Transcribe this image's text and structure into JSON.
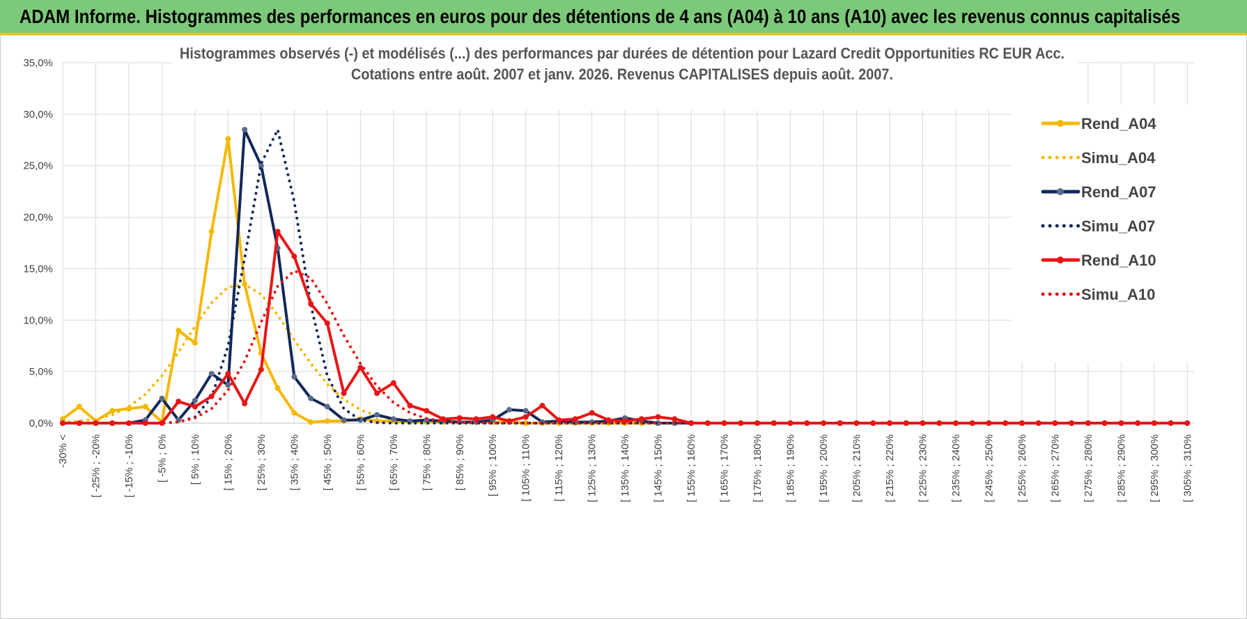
{
  "header": {
    "title": "ADAM Informe. Histogrammes des performances en euros pour des détentions de 4 ans (A04) à 10 ans (A10) avec les revenus connus capitalisés",
    "background": "#7DC97A",
    "accent": "#F2C300"
  },
  "chart_data": {
    "type": "line",
    "title_line1": "Histogrammes observés (-) et modélisés (...) des performances par durées de détention pour Lazard Credit Opportunities RC EUR Acc.",
    "title_line2": "Cotations entre août. 2007 et janv. 2026. Revenus CAPITALISES depuis août. 2007.",
    "ylim": [
      0,
      35
    ],
    "yticks": [
      "0,0%",
      "5,0%",
      "10,0%",
      "15,0%",
      "20,0%",
      "25,0%",
      "30,0%",
      "35,0%"
    ],
    "grid": true,
    "legend_position": "right",
    "x_labels": [
      "-30% <",
      "[ -25% ; -20%",
      "[ -15% ; -10%",
      "[ -5% ; 0%",
      "[ 5% ; 10%",
      "[ 15% ; 20%",
      "[ 25% ; 30%",
      "[ 35% ; 40%",
      "[ 45% ; 50%",
      "[ 55% ; 60%",
      "[ 65% ; 70%",
      "[ 75% ; 80%",
      "[ 85% ; 90%",
      "[ 95% ; 100%",
      "[ 105% ; 110%",
      "[ 115% ; 120%",
      "[ 125% ; 130%",
      "[ 135% ; 140%",
      "[ 145% ; 150%",
      "[ 155% ; 160%",
      "[ 165% ; 170%",
      "[ 175% ; 180%",
      "[ 185% ; 190%",
      "[ 195% ; 200%",
      "[ 205% ; 210%",
      "[ 215% ; 220%",
      "[ 225% ; 230%",
      "[ 235% ; 240%",
      "[ 245% ; 250%",
      "[ 255% ; 260%",
      "[ 265% ; 270%",
      "[ 275% ; 280%",
      "[ 285% ; 290%",
      "[ 295% ; 300%",
      "[ 305% ; 310%"
    ],
    "n_points": 69,
    "series": [
      {
        "name": "Rend_A04",
        "color": "#F5B800",
        "style": "solid",
        "values": [
          0.4,
          1.6,
          0.2,
          1.2,
          1.4,
          1.6,
          0.1,
          9.0,
          7.8,
          18.6,
          27.6,
          13.5,
          6.8,
          3.4,
          1.0,
          0.1,
          0.2,
          0.2,
          0.4,
          0.2,
          0.2,
          0.1,
          0.1,
          0.1,
          0.1,
          0.1,
          0.1,
          0.1,
          0,
          0,
          0,
          0,
          0,
          0,
          0,
          0,
          0,
          0,
          0,
          0,
          0,
          0,
          0,
          0,
          0,
          0,
          0,
          0,
          0,
          0,
          0,
          0,
          0,
          0,
          0,
          0,
          0,
          0,
          0,
          0,
          0,
          0,
          0,
          0,
          0,
          0,
          0,
          0,
          0
        ]
      },
      {
        "name": "Simu_A04",
        "color": "#F5B800",
        "style": "dotted",
        "values": [
          0.1,
          0.2,
          0.4,
          0.8,
          1.6,
          2.8,
          4.6,
          6.9,
          9.4,
          11.7,
          13.2,
          13.5,
          12.5,
          10.5,
          8.1,
          5.8,
          3.8,
          2.3,
          1.3,
          0.7,
          0.35,
          0.15,
          0.1,
          0.05,
          0,
          0,
          0,
          0,
          0,
          0,
          0,
          0,
          0,
          0,
          0,
          0,
          0,
          0,
          0,
          0,
          0,
          0,
          0,
          0,
          0,
          0,
          0,
          0,
          0,
          0,
          0,
          0,
          0,
          0,
          0,
          0,
          0,
          0,
          0,
          0,
          0,
          0,
          0,
          0,
          0,
          0,
          0,
          0,
          0
        ]
      },
      {
        "name": "Rend_A07",
        "color": "#12285A",
        "style": "solid",
        "values": [
          0,
          0,
          0,
          0,
          0,
          0.3,
          2.4,
          0.3,
          2.2,
          4.8,
          3.7,
          28.5,
          25.0,
          17.0,
          4.5,
          2.4,
          1.6,
          0.3,
          0.3,
          0.8,
          0.4,
          0.2,
          0.3,
          0.2,
          0.1,
          0.1,
          0.3,
          1.3,
          1.2,
          0.1,
          0.2,
          0.1,
          0.1,
          0.2,
          0.5,
          0.2,
          0,
          0,
          0,
          0,
          0,
          0,
          0,
          0,
          0,
          0,
          0,
          0,
          0,
          0,
          0,
          0,
          0,
          0,
          0,
          0,
          0,
          0,
          0,
          0,
          0,
          0,
          0,
          0,
          0,
          0,
          0,
          0,
          0
        ]
      },
      {
        "name": "Simu_A07",
        "color": "#12285A",
        "style": "dotted",
        "values": [
          0,
          0,
          0,
          0,
          0,
          0,
          0,
          0.1,
          0.6,
          2.5,
          7.5,
          16.0,
          25.2,
          28.5,
          21.5,
          11.5,
          4.6,
          1.4,
          0.3,
          0.05,
          0,
          0,
          0,
          0,
          0,
          0,
          0,
          0,
          0,
          0,
          0,
          0,
          0,
          0,
          0,
          0,
          0,
          0,
          0,
          0,
          0,
          0,
          0,
          0,
          0,
          0,
          0,
          0,
          0,
          0,
          0,
          0,
          0,
          0,
          0,
          0,
          0,
          0,
          0,
          0,
          0,
          0,
          0,
          0,
          0,
          0,
          0,
          0,
          0
        ]
      },
      {
        "name": "Rend_A10",
        "color": "#E81515",
        "style": "solid",
        "values": [
          0,
          0,
          0,
          0,
          0,
          0,
          0,
          2.1,
          1.6,
          2.6,
          4.8,
          1.9,
          5.2,
          18.6,
          16.2,
          11.6,
          9.7,
          2.9,
          5.4,
          2.9,
          3.9,
          1.7,
          1.2,
          0.4,
          0.5,
          0.4,
          0.6,
          0.2,
          0.6,
          1.7,
          0.3,
          0.4,
          1.0,
          0.3,
          0.2,
          0.4,
          0.6,
          0.4,
          0,
          0,
          0,
          0,
          0,
          0,
          0,
          0,
          0,
          0,
          0,
          0,
          0,
          0,
          0,
          0,
          0,
          0,
          0,
          0,
          0,
          0,
          0,
          0,
          0,
          0,
          0,
          0,
          0,
          0,
          0
        ]
      },
      {
        "name": "Simu_A10",
        "color": "#E81515",
        "style": "dotted",
        "values": [
          0,
          0,
          0,
          0,
          0,
          0,
          0,
          0.1,
          0.5,
          1.4,
          3.2,
          6.0,
          9.8,
          13.3,
          14.8,
          14.1,
          11.6,
          8.5,
          5.8,
          3.6,
          2.0,
          1.0,
          0.45,
          0.2,
          0.08,
          0.03,
          0,
          0,
          0,
          0,
          0,
          0,
          0,
          0,
          0,
          0,
          0,
          0,
          0,
          0,
          0,
          0,
          0,
          0,
          0,
          0,
          0,
          0,
          0,
          0,
          0,
          0,
          0,
          0,
          0,
          0,
          0,
          0,
          0,
          0,
          0,
          0,
          0,
          0,
          0,
          0,
          0,
          0,
          0
        ]
      }
    ]
  }
}
